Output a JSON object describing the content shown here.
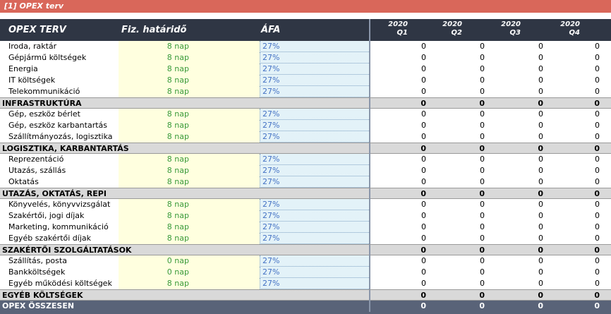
{
  "sheet_title": "[1] OPEX terv",
  "header": {
    "col1": "OPEX TERV",
    "col2": "Fiz. határidő",
    "col3": "ÁFA",
    "quarters": [
      {
        "year": "2020",
        "q": "Q1"
      },
      {
        "year": "2020",
        "q": "Q2"
      },
      {
        "year": "2020",
        "q": "Q3"
      },
      {
        "year": "2020",
        "q": "Q4"
      }
    ]
  },
  "rows": [
    {
      "type": "item",
      "name": "Iroda, raktár",
      "deadline": "8 nap",
      "vat": "27%",
      "q": [
        "0",
        "0",
        "0",
        "0"
      ]
    },
    {
      "type": "item",
      "name": "Gépjármű költségek",
      "deadline": "8 nap",
      "vat": "27%",
      "q": [
        "0",
        "0",
        "0",
        "0"
      ]
    },
    {
      "type": "item",
      "name": "Energia",
      "deadline": "8 nap",
      "vat": "27%",
      "q": [
        "0",
        "0",
        "0",
        "0"
      ]
    },
    {
      "type": "item",
      "name": "IT költségek",
      "deadline": "8 nap",
      "vat": "27%",
      "q": [
        "0",
        "0",
        "0",
        "0"
      ]
    },
    {
      "type": "item",
      "name": "Telekommunikáció",
      "deadline": "8 nap",
      "vat": "27%",
      "q": [
        "0",
        "0",
        "0",
        "0"
      ]
    },
    {
      "type": "cat",
      "name": "INFRASTRUKTÚRA",
      "q": [
        "0",
        "0",
        "0",
        "0"
      ]
    },
    {
      "type": "item",
      "name": "Gép, eszköz bérlet",
      "deadline": "8 nap",
      "vat": "27%",
      "q": [
        "0",
        "0",
        "0",
        "0"
      ]
    },
    {
      "type": "item",
      "name": "Gép, eszköz karbantartás",
      "deadline": "8 nap",
      "vat": "27%",
      "q": [
        "0",
        "0",
        "0",
        "0"
      ]
    },
    {
      "type": "item",
      "name": "Szállítmányozás, logisztika",
      "deadline": "8 nap",
      "vat": "27%",
      "q": [
        "0",
        "0",
        "0",
        "0"
      ]
    },
    {
      "type": "cat",
      "name": "LOGISZTIKA, KARBANTARTÁS",
      "q": [
        "0",
        "0",
        "0",
        "0"
      ]
    },
    {
      "type": "item",
      "name": "Reprezentáció",
      "deadline": "8 nap",
      "vat": "27%",
      "q": [
        "0",
        "0",
        "0",
        "0"
      ]
    },
    {
      "type": "item",
      "name": "Utazás, szállás",
      "deadline": "8 nap",
      "vat": "27%",
      "q": [
        "0",
        "0",
        "0",
        "0"
      ]
    },
    {
      "type": "item",
      "name": "Oktatás",
      "deadline": "8 nap",
      "vat": "27%",
      "q": [
        "0",
        "0",
        "0",
        "0"
      ]
    },
    {
      "type": "cat",
      "name": "UTAZÁS, OKTATÁS, REPI",
      "q": [
        "0",
        "0",
        "0",
        "0"
      ]
    },
    {
      "type": "item",
      "name": "Könyvelés, könyvvizsgálat",
      "deadline": "8 nap",
      "vat": "27%",
      "q": [
        "0",
        "0",
        "0",
        "0"
      ]
    },
    {
      "type": "item",
      "name": "Szakértői, jogi díjak",
      "deadline": "8 nap",
      "vat": "27%",
      "q": [
        "0",
        "0",
        "0",
        "0"
      ]
    },
    {
      "type": "item",
      "name": "Marketing, kommunikáció",
      "deadline": "8 nap",
      "vat": "27%",
      "q": [
        "0",
        "0",
        "0",
        "0"
      ]
    },
    {
      "type": "item",
      "name": "Egyéb szakértői díjak",
      "deadline": "8 nap",
      "vat": "27%",
      "q": [
        "0",
        "0",
        "0",
        "0"
      ]
    },
    {
      "type": "cat",
      "name": "SZAKÉRTŐI SZOLGÁLTATÁSOK",
      "q": [
        "0",
        "0",
        "0",
        "0"
      ]
    },
    {
      "type": "item",
      "name": "Szállítás, posta",
      "deadline": "0 nap",
      "vat": "27%",
      "q": [
        "0",
        "0",
        "0",
        "0"
      ]
    },
    {
      "type": "item",
      "name": "Bankköltségek",
      "deadline": "0 nap",
      "vat": "27%",
      "q": [
        "0",
        "0",
        "0",
        "0"
      ]
    },
    {
      "type": "item",
      "name": "Egyéb működési költségek",
      "deadline": "8 nap",
      "vat": "27%",
      "q": [
        "0",
        "0",
        "0",
        "0"
      ]
    },
    {
      "type": "cat",
      "name": "EGYÉB KÖLTSÉGEK",
      "q": [
        "0",
        "0",
        "0",
        "0"
      ]
    },
    {
      "type": "total",
      "name": "OPEX ÖSSZESEN",
      "q": [
        "0",
        "0",
        "0",
        "0"
      ]
    }
  ]
}
